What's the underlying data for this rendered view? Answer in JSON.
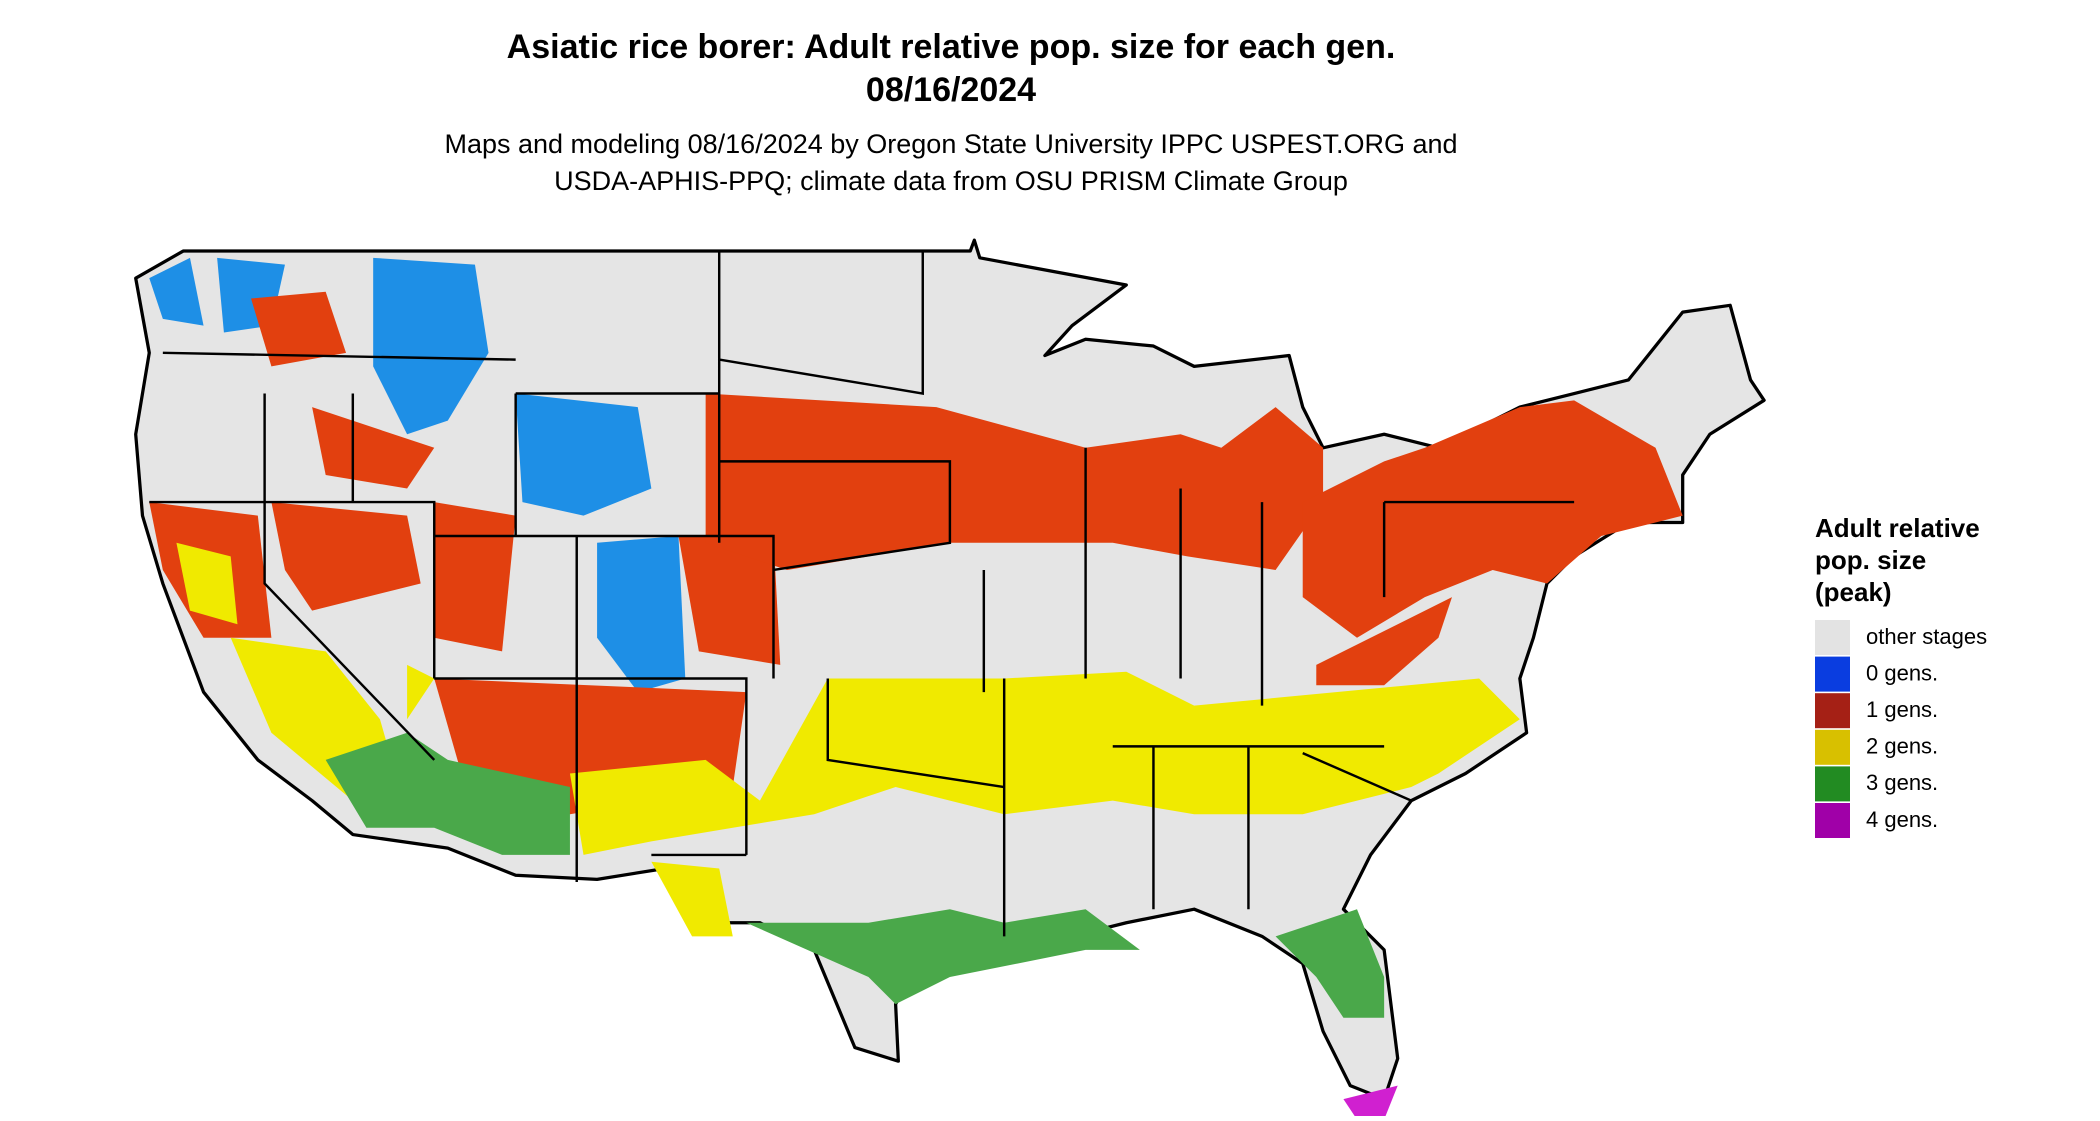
{
  "header": {
    "title": "Asiatic rice borer: Adult relative pop. size for each gen.",
    "date": "08/16/2024",
    "subtitle": [
      "Maps and modeling 08/16/2024 by Oregon State University IPPC USPEST.ORG and",
      "USDA-APHIS-PPQ; climate data from OSU PRISM Climate Group"
    ]
  },
  "legend": {
    "title": [
      "Adult relative",
      "pop. size",
      "(peak)"
    ],
    "items": [
      {
        "label": "other stages",
        "color": "#e3e3e3"
      },
      {
        "label": "0 gens.",
        "color": "#0a3de0"
      },
      {
        "label": "1 gens.",
        "color": "#a52015"
      },
      {
        "label": "2 gens.",
        "color": "#d8c000"
      },
      {
        "label": "3 gens.",
        "color": "#228b22"
      },
      {
        "label": "4 gens.",
        "color": "#a000a8"
      }
    ]
  }
}
